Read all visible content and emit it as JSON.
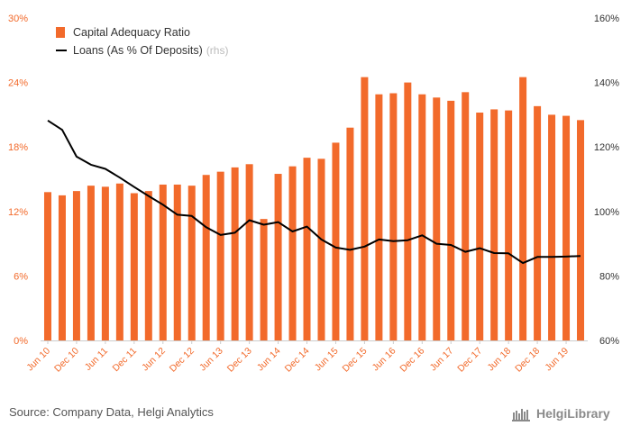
{
  "chart_data": {
    "type": "bar+line",
    "categories": [
      "Jun 10",
      "Sep 10",
      "Dec 10",
      "Mar 11",
      "Jun 11",
      "Sep 11",
      "Dec 11",
      "Mar 12",
      "Jun 12",
      "Sep 12",
      "Dec 12",
      "Mar 13",
      "Jun 13",
      "Sep 13",
      "Dec 13",
      "Mar 14",
      "Jun 14",
      "Sep 14",
      "Dec 14",
      "Mar 15",
      "Jun 15",
      "Sep 15",
      "Dec 15",
      "Mar 16",
      "Jun 16",
      "Sep 16",
      "Dec 16",
      "Mar 17",
      "Jun 17",
      "Sep 17",
      "Dec 17",
      "Mar 18",
      "Jun 18",
      "Sep 18",
      "Dec 18",
      "Mar 19",
      "Jun 19",
      "Sep 19"
    ],
    "x_tick_labels": [
      "Jun 10",
      "Dec 10",
      "Jun 11",
      "Dec 11",
      "Jun 12",
      "Dec 12",
      "Jun 13",
      "Dec 13",
      "Jun 14",
      "Dec 14",
      "Jun 15",
      "Dec 15",
      "Jun 16",
      "Dec 16",
      "Jun 17",
      "Dec 17",
      "Jun 18",
      "Dec 18",
      "Jun 19"
    ],
    "series": [
      {
        "name": "Capital Adequacy Ratio",
        "type": "bar",
        "axis": "left",
        "color": "#f26a2b",
        "values": [
          13.8,
          13.5,
          13.9,
          14.4,
          14.3,
          14.6,
          13.7,
          13.9,
          14.5,
          14.5,
          14.4,
          15.4,
          15.7,
          16.1,
          16.4,
          11.3,
          15.5,
          16.2,
          17.0,
          16.9,
          18.4,
          19.8,
          24.5,
          22.9,
          23.0,
          24.0,
          22.9,
          22.6,
          22.3,
          23.1,
          21.2,
          21.5,
          21.4,
          24.5,
          21.8,
          21.0,
          20.9,
          20.5
        ]
      },
      {
        "name": "Loans (As % Of Deposits)",
        "name_suffix": "(rhs)",
        "type": "line",
        "axis": "right",
        "color": "#000000",
        "values": [
          128.2,
          125.3,
          117.0,
          114.5,
          113.2,
          110.5,
          107.6,
          104.8,
          102.1,
          99.0,
          98.6,
          95.1,
          92.7,
          93.4,
          97.3,
          95.9,
          96.7,
          93.8,
          95.3,
          91.3,
          88.8,
          88.1,
          89.1,
          91.3,
          90.8,
          91.1,
          92.6,
          90.0,
          89.6,
          87.5,
          88.6,
          87.1,
          87.0,
          84.0,
          85.9,
          85.9,
          86.0,
          86.2
        ]
      }
    ],
    "y_left": {
      "ticks": [
        "0%",
        "6%",
        "12%",
        "18%",
        "24%",
        "30%"
      ],
      "ylim": [
        0,
        30
      ],
      "color": "#f26a2b"
    },
    "y_right": {
      "ticks": [
        "60%",
        "80%",
        "100%",
        "120%",
        "140%",
        "160%"
      ],
      "ylim": [
        60,
        160
      ],
      "color": "#333333"
    },
    "grid": false,
    "legend": "top-left"
  },
  "source": "Source: Company Data, Helgi Analytics",
  "brand": "HelgiLibrary"
}
